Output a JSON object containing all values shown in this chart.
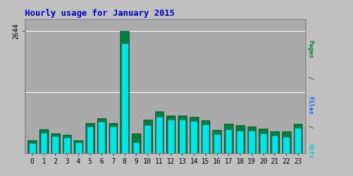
{
  "title": "Hourly usage for January 2015",
  "hours": [
    0,
    1,
    2,
    3,
    4,
    5,
    6,
    7,
    8,
    9,
    10,
    11,
    12,
    13,
    14,
    15,
    16,
    17,
    18,
    19,
    20,
    21,
    22,
    23
  ],
  "pages": [
    280,
    520,
    430,
    400,
    280,
    650,
    760,
    650,
    2644,
    430,
    720,
    900,
    820,
    820,
    790,
    710,
    500,
    640,
    600,
    580,
    530,
    480,
    480,
    640
  ],
  "hits": [
    220,
    450,
    370,
    345,
    230,
    570,
    680,
    580,
    2380,
    230,
    610,
    790,
    720,
    720,
    690,
    620,
    415,
    520,
    490,
    490,
    430,
    390,
    360,
    540
  ],
  "color_pages": "#008040",
  "color_hits": "#00e5e5",
  "bg_color": "#c0c0c0",
  "plot_bg_color": "#aaaaaa",
  "title_color": "#0000cc",
  "grid_color": "#ffffff",
  "ylim_max": 2900,
  "ytick_value": 2644,
  "bar_width": 0.38,
  "right_label_pages_color": "#008040",
  "right_label_files_color": "#0066ff",
  "right_label_hits_color": "#00cccc"
}
